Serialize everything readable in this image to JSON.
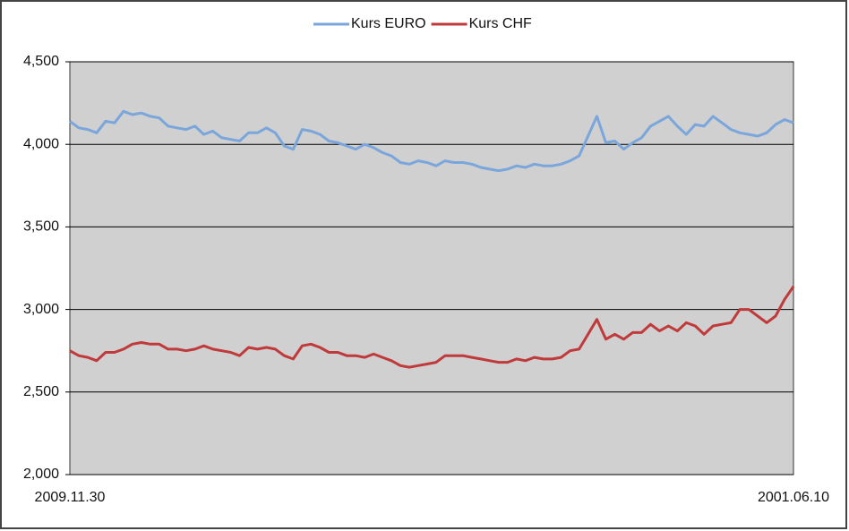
{
  "chart_data": {
    "type": "line",
    "categories": [
      "2009.11.30",
      null,
      null,
      null,
      null,
      null,
      null,
      null,
      null,
      null,
      null,
      null,
      null,
      null,
      null,
      null,
      null,
      null,
      null,
      null,
      null,
      null,
      null,
      null,
      null,
      null,
      null,
      null,
      null,
      null,
      null,
      null,
      null,
      null,
      null,
      null,
      null,
      null,
      null,
      null,
      null,
      null,
      null,
      null,
      null,
      null,
      null,
      null,
      null,
      null,
      null,
      null,
      null,
      null,
      null,
      null,
      null,
      null,
      null,
      null,
      null,
      null,
      null,
      null,
      null,
      null,
      null,
      null,
      null,
      null,
      null,
      null,
      null,
      null,
      null,
      null,
      null,
      null,
      null,
      null,
      null,
      "2001.06.10"
    ],
    "series": [
      {
        "name": "Kurs EURO",
        "color": "#7aa6dc",
        "values": [
          4140,
          4100,
          4090,
          4070,
          4140,
          4130,
          4200,
          4180,
          4190,
          4170,
          4160,
          4110,
          4100,
          4090,
          4110,
          4060,
          4080,
          4040,
          4030,
          4020,
          4070,
          4070,
          4100,
          4070,
          3990,
          3970,
          4090,
          4080,
          4060,
          4020,
          4010,
          3990,
          3970,
          4000,
          3980,
          3950,
          3930,
          3890,
          3880,
          3900,
          3890,
          3870,
          3900,
          3890,
          3890,
          3880,
          3860,
          3850,
          3840,
          3850,
          3870,
          3860,
          3880,
          3870,
          3870,
          3880,
          3900,
          3930,
          4050,
          4170,
          4010,
          4020,
          3970,
          4010,
          4040,
          4110,
          4140,
          4170,
          4110,
          4060,
          4120,
          4110,
          4170,
          4130,
          4090,
          4070,
          4060,
          4050,
          4070,
          4120,
          4150,
          4130
        ]
      },
      {
        "name": "Kurs CHF",
        "color": "#c0393b",
        "values": [
          2750,
          2720,
          2710,
          2690,
          2740,
          2740,
          2760,
          2790,
          2800,
          2790,
          2790,
          2760,
          2760,
          2750,
          2760,
          2780,
          2760,
          2750,
          2740,
          2720,
          2770,
          2760,
          2770,
          2760,
          2720,
          2700,
          2780,
          2790,
          2770,
          2740,
          2740,
          2720,
          2720,
          2710,
          2730,
          2710,
          2690,
          2660,
          2650,
          2660,
          2670,
          2680,
          2720,
          2720,
          2720,
          2710,
          2700,
          2690,
          2680,
          2680,
          2700,
          2690,
          2710,
          2700,
          2700,
          2710,
          2750,
          2760,
          2850,
          2940,
          2820,
          2850,
          2820,
          2860,
          2860,
          2910,
          2870,
          2900,
          2870,
          2920,
          2900,
          2850,
          2900,
          2910,
          2920,
          3000,
          3000,
          2960,
          2920,
          2960,
          3060,
          3140
        ]
      }
    ],
    "ylim": [
      2000,
      4500
    ],
    "yticks": [
      {
        "value": 2000,
        "label": "2,000"
      },
      {
        "value": 2500,
        "label": "2,500"
      },
      {
        "value": 3000,
        "label": "3,000"
      },
      {
        "value": 3500,
        "label": "3,500"
      },
      {
        "value": 4000,
        "label": "4,000"
      },
      {
        "value": 4500,
        "label": "4,500"
      }
    ],
    "grid": true,
    "legend": "top"
  }
}
